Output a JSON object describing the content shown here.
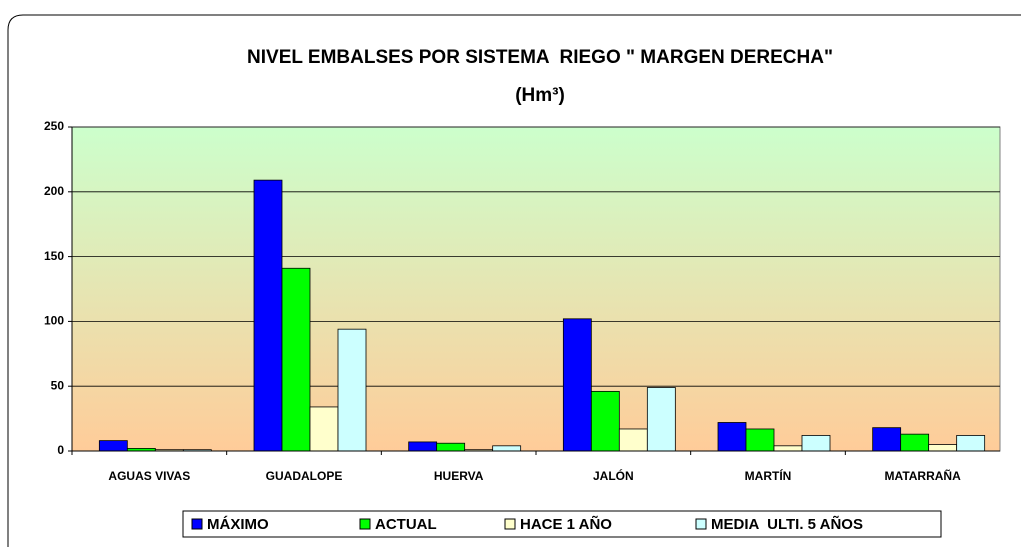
{
  "chart_data": {
    "type": "bar",
    "title": "NIVEL EMBALSES POR SISTEMA  RIEGO \" MARGEN DERECHA\"",
    "subtitle": "(Hm³)",
    "categories": [
      "AGUAS VIVAS",
      "GUADALOPE",
      "HUERVA",
      "JALÓN",
      "MARTÍN",
      "MATARRAÑA"
    ],
    "series": [
      {
        "name": "MÁXIMO",
        "color": "#0000ff",
        "values": [
          8,
          209,
          7,
          102,
          22,
          18
        ]
      },
      {
        "name": "ACTUAL",
        "color": "#00ff00",
        "values": [
          2,
          141,
          6,
          46,
          17,
          13
        ]
      },
      {
        "name": "HACE 1 AÑO",
        "color": "#ffffcc",
        "values": [
          1,
          34,
          1,
          17,
          4,
          5
        ]
      },
      {
        "name": "MEDIA  ULTI. 5 AÑOS",
        "color": "#ccffff",
        "values": [
          1,
          94,
          4,
          49,
          12,
          12
        ]
      }
    ],
    "ylim": [
      0,
      250
    ],
    "yticks": [
      0,
      50,
      100,
      150,
      200,
      250
    ],
    "grid": true,
    "legend": "bottom"
  }
}
